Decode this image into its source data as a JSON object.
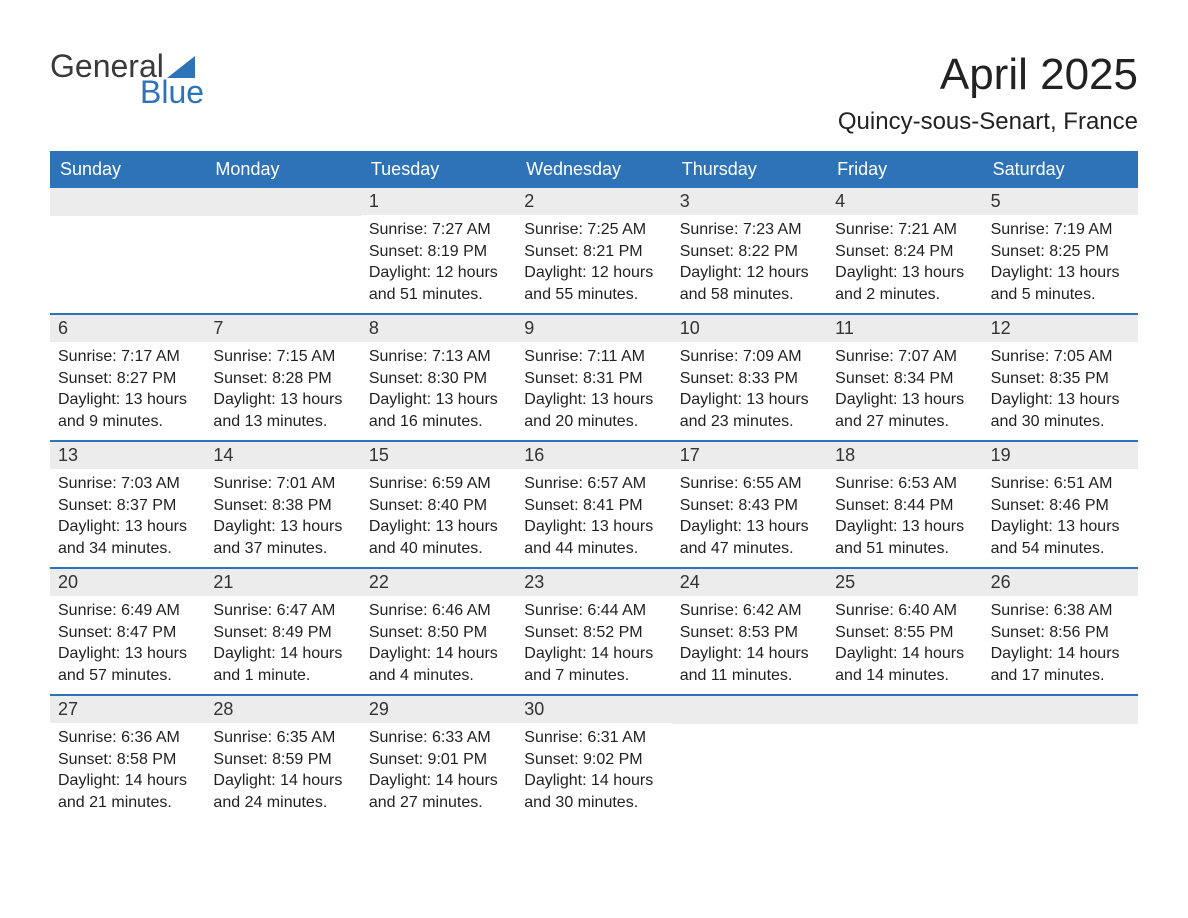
{
  "logo": {
    "text_top": "General",
    "text_bottom": "Blue",
    "top_color": "#3a3a3a",
    "bottom_color": "#2e73b8",
    "triangle_color": "#2e73b8"
  },
  "header": {
    "month_title": "April 2025",
    "location": "Quincy-sous-Senart, France"
  },
  "colors": {
    "header_bg": "#2e73b8",
    "header_text": "#ffffff",
    "day_number_bg": "#ececec",
    "week_border": "#2e73b8",
    "body_text": "#222222",
    "background": "#ffffff"
  },
  "typography": {
    "month_title_size": 44,
    "location_size": 24,
    "day_header_size": 18,
    "day_number_size": 18,
    "content_size": 16,
    "logo_size": 32
  },
  "day_headers": [
    "Sunday",
    "Monday",
    "Tuesday",
    "Wednesday",
    "Thursday",
    "Friday",
    "Saturday"
  ],
  "weeks": [
    [
      {
        "empty": true
      },
      {
        "empty": true
      },
      {
        "day": "1",
        "sunrise": "Sunrise: 7:27 AM",
        "sunset": "Sunset: 8:19 PM",
        "daylight1": "Daylight: 12 hours",
        "daylight2": "and 51 minutes."
      },
      {
        "day": "2",
        "sunrise": "Sunrise: 7:25 AM",
        "sunset": "Sunset: 8:21 PM",
        "daylight1": "Daylight: 12 hours",
        "daylight2": "and 55 minutes."
      },
      {
        "day": "3",
        "sunrise": "Sunrise: 7:23 AM",
        "sunset": "Sunset: 8:22 PM",
        "daylight1": "Daylight: 12 hours",
        "daylight2": "and 58 minutes."
      },
      {
        "day": "4",
        "sunrise": "Sunrise: 7:21 AM",
        "sunset": "Sunset: 8:24 PM",
        "daylight1": "Daylight: 13 hours",
        "daylight2": "and 2 minutes."
      },
      {
        "day": "5",
        "sunrise": "Sunrise: 7:19 AM",
        "sunset": "Sunset: 8:25 PM",
        "daylight1": "Daylight: 13 hours",
        "daylight2": "and 5 minutes."
      }
    ],
    [
      {
        "day": "6",
        "sunrise": "Sunrise: 7:17 AM",
        "sunset": "Sunset: 8:27 PM",
        "daylight1": "Daylight: 13 hours",
        "daylight2": "and 9 minutes."
      },
      {
        "day": "7",
        "sunrise": "Sunrise: 7:15 AM",
        "sunset": "Sunset: 8:28 PM",
        "daylight1": "Daylight: 13 hours",
        "daylight2": "and 13 minutes."
      },
      {
        "day": "8",
        "sunrise": "Sunrise: 7:13 AM",
        "sunset": "Sunset: 8:30 PM",
        "daylight1": "Daylight: 13 hours",
        "daylight2": "and 16 minutes."
      },
      {
        "day": "9",
        "sunrise": "Sunrise: 7:11 AM",
        "sunset": "Sunset: 8:31 PM",
        "daylight1": "Daylight: 13 hours",
        "daylight2": "and 20 minutes."
      },
      {
        "day": "10",
        "sunrise": "Sunrise: 7:09 AM",
        "sunset": "Sunset: 8:33 PM",
        "daylight1": "Daylight: 13 hours",
        "daylight2": "and 23 minutes."
      },
      {
        "day": "11",
        "sunrise": "Sunrise: 7:07 AM",
        "sunset": "Sunset: 8:34 PM",
        "daylight1": "Daylight: 13 hours",
        "daylight2": "and 27 minutes."
      },
      {
        "day": "12",
        "sunrise": "Sunrise: 7:05 AM",
        "sunset": "Sunset: 8:35 PM",
        "daylight1": "Daylight: 13 hours",
        "daylight2": "and 30 minutes."
      }
    ],
    [
      {
        "day": "13",
        "sunrise": "Sunrise: 7:03 AM",
        "sunset": "Sunset: 8:37 PM",
        "daylight1": "Daylight: 13 hours",
        "daylight2": "and 34 minutes."
      },
      {
        "day": "14",
        "sunrise": "Sunrise: 7:01 AM",
        "sunset": "Sunset: 8:38 PM",
        "daylight1": "Daylight: 13 hours",
        "daylight2": "and 37 minutes."
      },
      {
        "day": "15",
        "sunrise": "Sunrise: 6:59 AM",
        "sunset": "Sunset: 8:40 PM",
        "daylight1": "Daylight: 13 hours",
        "daylight2": "and 40 minutes."
      },
      {
        "day": "16",
        "sunrise": "Sunrise: 6:57 AM",
        "sunset": "Sunset: 8:41 PM",
        "daylight1": "Daylight: 13 hours",
        "daylight2": "and 44 minutes."
      },
      {
        "day": "17",
        "sunrise": "Sunrise: 6:55 AM",
        "sunset": "Sunset: 8:43 PM",
        "daylight1": "Daylight: 13 hours",
        "daylight2": "and 47 minutes."
      },
      {
        "day": "18",
        "sunrise": "Sunrise: 6:53 AM",
        "sunset": "Sunset: 8:44 PM",
        "daylight1": "Daylight: 13 hours",
        "daylight2": "and 51 minutes."
      },
      {
        "day": "19",
        "sunrise": "Sunrise: 6:51 AM",
        "sunset": "Sunset: 8:46 PM",
        "daylight1": "Daylight: 13 hours",
        "daylight2": "and 54 minutes."
      }
    ],
    [
      {
        "day": "20",
        "sunrise": "Sunrise: 6:49 AM",
        "sunset": "Sunset: 8:47 PM",
        "daylight1": "Daylight: 13 hours",
        "daylight2": "and 57 minutes."
      },
      {
        "day": "21",
        "sunrise": "Sunrise: 6:47 AM",
        "sunset": "Sunset: 8:49 PM",
        "daylight1": "Daylight: 14 hours",
        "daylight2": "and 1 minute."
      },
      {
        "day": "22",
        "sunrise": "Sunrise: 6:46 AM",
        "sunset": "Sunset: 8:50 PM",
        "daylight1": "Daylight: 14 hours",
        "daylight2": "and 4 minutes."
      },
      {
        "day": "23",
        "sunrise": "Sunrise: 6:44 AM",
        "sunset": "Sunset: 8:52 PM",
        "daylight1": "Daylight: 14 hours",
        "daylight2": "and 7 minutes."
      },
      {
        "day": "24",
        "sunrise": "Sunrise: 6:42 AM",
        "sunset": "Sunset: 8:53 PM",
        "daylight1": "Daylight: 14 hours",
        "daylight2": "and 11 minutes."
      },
      {
        "day": "25",
        "sunrise": "Sunrise: 6:40 AM",
        "sunset": "Sunset: 8:55 PM",
        "daylight1": "Daylight: 14 hours",
        "daylight2": "and 14 minutes."
      },
      {
        "day": "26",
        "sunrise": "Sunrise: 6:38 AM",
        "sunset": "Sunset: 8:56 PM",
        "daylight1": "Daylight: 14 hours",
        "daylight2": "and 17 minutes."
      }
    ],
    [
      {
        "day": "27",
        "sunrise": "Sunrise: 6:36 AM",
        "sunset": "Sunset: 8:58 PM",
        "daylight1": "Daylight: 14 hours",
        "daylight2": "and 21 minutes."
      },
      {
        "day": "28",
        "sunrise": "Sunrise: 6:35 AM",
        "sunset": "Sunset: 8:59 PM",
        "daylight1": "Daylight: 14 hours",
        "daylight2": "and 24 minutes."
      },
      {
        "day": "29",
        "sunrise": "Sunrise: 6:33 AM",
        "sunset": "Sunset: 9:01 PM",
        "daylight1": "Daylight: 14 hours",
        "daylight2": "and 27 minutes."
      },
      {
        "day": "30",
        "sunrise": "Sunrise: 6:31 AM",
        "sunset": "Sunset: 9:02 PM",
        "daylight1": "Daylight: 14 hours",
        "daylight2": "and 30 minutes."
      },
      {
        "empty": true
      },
      {
        "empty": true
      },
      {
        "empty": true
      }
    ]
  ]
}
